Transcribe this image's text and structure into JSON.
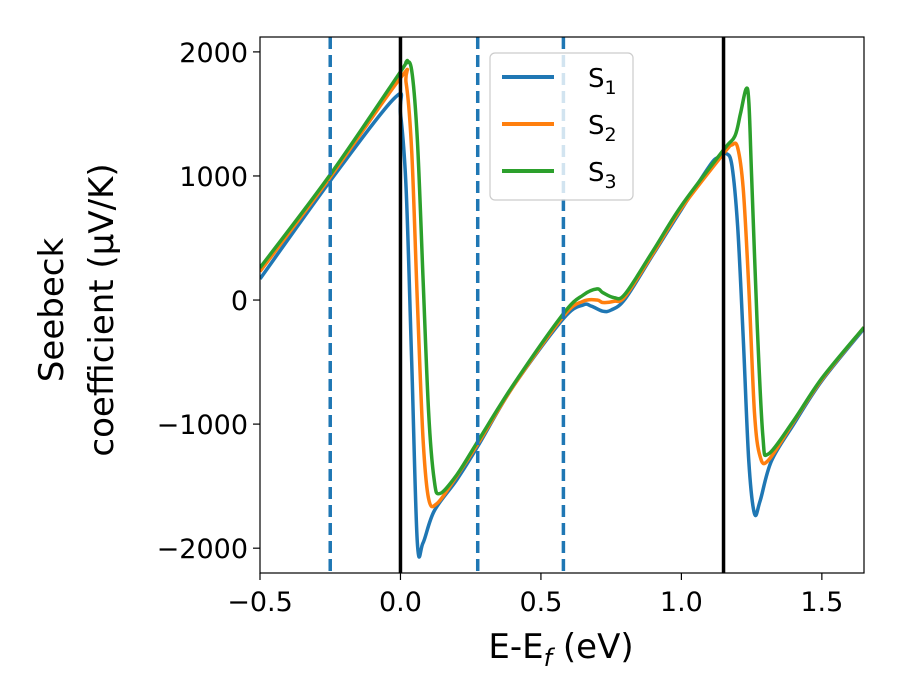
{
  "chart_data": {
    "type": "line",
    "title": "",
    "xlabel": "E-E",
    "xlabel_sub": "f",
    "xlabel_unit": " (eV)",
    "ylabel_line1": "Seebeck",
    "ylabel_line2": "coefficient  (μV/K)",
    "xlim": [
      -0.5,
      1.65
    ],
    "ylim": [
      -2200,
      2120
    ],
    "x_ticks": [
      -0.5,
      0.0,
      0.5,
      1.0,
      1.5
    ],
    "x_tick_labels": [
      "−0.5",
      "0.0",
      "0.5",
      "1.0",
      "1.5"
    ],
    "y_ticks": [
      -2000,
      -1000,
      0,
      1000,
      2000
    ],
    "y_tick_labels": [
      "−2000",
      "−1000",
      "0",
      "1000",
      "2000"
    ],
    "grid": false,
    "legend_position": "top-center",
    "vertical_lines": [
      {
        "x": 0.0,
        "style": "solid",
        "color": "#000000"
      },
      {
        "x": 1.15,
        "style": "solid",
        "color": "#000000"
      },
      {
        "x": -0.25,
        "style": "dashed",
        "color": "#1f77b4"
      },
      {
        "x": 0.275,
        "style": "dashed",
        "color": "#1f77b4"
      },
      {
        "x": 0.58,
        "style": "dashed",
        "color": "#1f77b4"
      }
    ],
    "series": [
      {
        "name": "S",
        "sub": "1",
        "color": "#1f77b4",
        "points": [
          [
            -0.5,
            170
          ],
          [
            -0.25,
            960
          ],
          [
            -0.02,
            1630
          ],
          [
            0.0,
            1500
          ],
          [
            0.02,
            900
          ],
          [
            0.04,
            -500
          ],
          [
            0.06,
            -1950
          ],
          [
            0.08,
            -1960
          ],
          [
            0.12,
            -1700
          ],
          [
            0.2,
            -1450
          ],
          [
            0.275,
            -1180
          ],
          [
            0.4,
            -700
          ],
          [
            0.58,
            -150
          ],
          [
            0.65,
            -40
          ],
          [
            0.68,
            -50
          ],
          [
            0.72,
            -90
          ],
          [
            0.75,
            -80
          ],
          [
            0.8,
            10
          ],
          [
            0.9,
            370
          ],
          [
            1.0,
            730
          ],
          [
            1.1,
            1080
          ],
          [
            1.13,
            1150
          ],
          [
            1.16,
            1180
          ],
          [
            1.18,
            1080
          ],
          [
            1.2,
            600
          ],
          [
            1.22,
            -300
          ],
          [
            1.24,
            -1300
          ],
          [
            1.26,
            -1720
          ],
          [
            1.28,
            -1620
          ],
          [
            1.32,
            -1300
          ],
          [
            1.4,
            -1000
          ],
          [
            1.5,
            -650
          ],
          [
            1.65,
            -230
          ]
        ]
      },
      {
        "name": "S",
        "sub": "2",
        "color": "#ff7f0e",
        "points": [
          [
            -0.5,
            230
          ],
          [
            -0.25,
            990
          ],
          [
            0.0,
            1790
          ],
          [
            0.02,
            1750
          ],
          [
            0.04,
            1200
          ],
          [
            0.06,
            0
          ],
          [
            0.08,
            -1100
          ],
          [
            0.1,
            -1600
          ],
          [
            0.13,
            -1640
          ],
          [
            0.2,
            -1420
          ],
          [
            0.275,
            -1160
          ],
          [
            0.4,
            -700
          ],
          [
            0.58,
            -130
          ],
          [
            0.65,
            -10
          ],
          [
            0.7,
            0
          ],
          [
            0.72,
            -20
          ],
          [
            0.76,
            -10
          ],
          [
            0.8,
            30
          ],
          [
            0.9,
            380
          ],
          [
            1.0,
            740
          ],
          [
            1.15,
            1180
          ],
          [
            1.18,
            1250
          ],
          [
            1.2,
            1230
          ],
          [
            1.22,
            900
          ],
          [
            1.24,
            100
          ],
          [
            1.26,
            -900
          ],
          [
            1.28,
            -1260
          ],
          [
            1.31,
            -1290
          ],
          [
            1.4,
            -980
          ],
          [
            1.5,
            -640
          ],
          [
            1.65,
            -220
          ]
        ]
      },
      {
        "name": "S",
        "sub": "3",
        "color": "#2ca02c",
        "points": [
          [
            -0.5,
            260
          ],
          [
            -0.25,
            1010
          ],
          [
            0.0,
            1840
          ],
          [
            0.02,
            1910
          ],
          [
            0.04,
            1850
          ],
          [
            0.06,
            1300
          ],
          [
            0.08,
            200
          ],
          [
            0.1,
            -900
          ],
          [
            0.12,
            -1450
          ],
          [
            0.14,
            -1560
          ],
          [
            0.2,
            -1410
          ],
          [
            0.275,
            -1140
          ],
          [
            0.4,
            -690
          ],
          [
            0.58,
            -110
          ],
          [
            0.65,
            40
          ],
          [
            0.7,
            90
          ],
          [
            0.72,
            60
          ],
          [
            0.76,
            20
          ],
          [
            0.8,
            50
          ],
          [
            0.9,
            400
          ],
          [
            1.0,
            760
          ],
          [
            1.15,
            1210
          ],
          [
            1.19,
            1320
          ],
          [
            1.21,
            1500
          ],
          [
            1.23,
            1700
          ],
          [
            1.24,
            1600
          ],
          [
            1.25,
            1000
          ],
          [
            1.27,
            -200
          ],
          [
            1.29,
            -1100
          ],
          [
            1.31,
            -1240
          ],
          [
            1.4,
            -970
          ],
          [
            1.5,
            -630
          ],
          [
            1.65,
            -220
          ]
        ]
      }
    ]
  }
}
